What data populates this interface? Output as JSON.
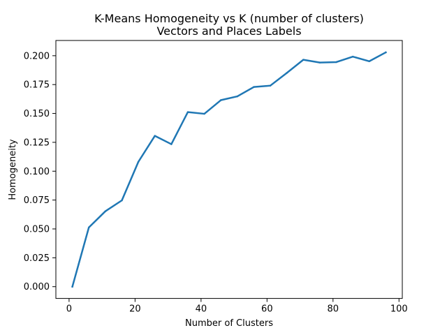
{
  "chart_data": {
    "type": "line",
    "title": "K-Means Homogeneity vs K (number of clusters)",
    "subtitle": "Vectors and Places Labels",
    "xlabel": "Number of Clusters",
    "ylabel": "Homogeneity",
    "xlim": [
      -4,
      101
    ],
    "ylim": [
      -0.0102,
      0.2132
    ],
    "xticks": [
      0,
      20,
      40,
      60,
      80,
      100
    ],
    "xtick_labels": [
      "0",
      "20",
      "40",
      "60",
      "80",
      "100"
    ],
    "yticks": [
      0.0,
      0.025,
      0.05,
      0.075,
      0.1,
      0.125,
      0.15,
      0.175,
      0.2
    ],
    "ytick_labels": [
      "0.000",
      "0.025",
      "0.050",
      "0.075",
      "0.100",
      "0.125",
      "0.150",
      "0.175",
      "0.200"
    ],
    "grid": false,
    "legend": "none",
    "series": [
      {
        "color": "#1f77b4",
        "x": [
          1,
          6,
          11,
          16,
          21,
          26,
          31,
          36,
          41,
          46,
          51,
          56,
          61,
          66,
          71,
          76,
          81,
          86,
          91,
          96
        ],
        "y": [
          0.0,
          0.0513,
          0.0653,
          0.0747,
          0.1081,
          0.1306,
          0.1234,
          0.1512,
          0.1497,
          0.1615,
          0.1648,
          0.1729,
          0.1741,
          0.1851,
          0.1965,
          0.1941,
          0.1945,
          0.1992,
          0.1952,
          0.2029
        ]
      }
    ]
  }
}
